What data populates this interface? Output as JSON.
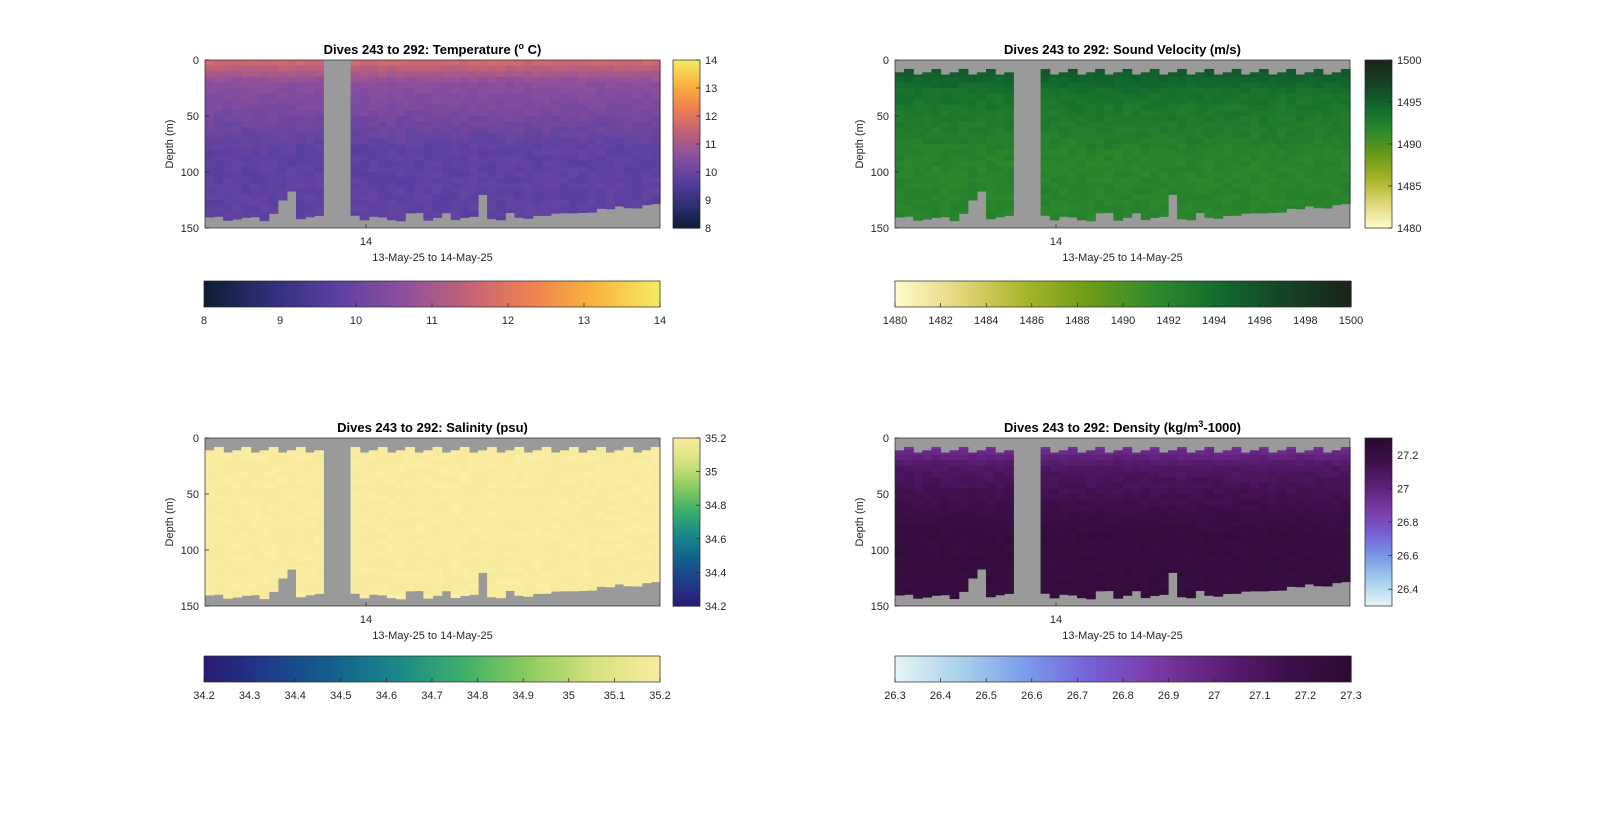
{
  "colors": {
    "background": "#ffffff",
    "nodata": "#9a9a9a",
    "axis": "#262626",
    "temperature_scale": [
      "#0d1d33",
      "#2f2f78",
      "#5a3fa0",
      "#8a4f9e",
      "#c0617a",
      "#ee8050",
      "#f9b43e",
      "#f4ec62"
    ],
    "sound_velocity_scale": [
      "#fefccc",
      "#e2d77a",
      "#a7b52a",
      "#6c9b17",
      "#2e8a2c",
      "#116b2e",
      "#154225",
      "#1a2419"
    ],
    "salinity_scale": [
      "#2a1a74",
      "#1e3c8a",
      "#12628d",
      "#1a8a88",
      "#3fb06a",
      "#8fcc5f",
      "#d6e27e",
      "#faeca0"
    ],
    "density_scale": [
      "#e8f4f6",
      "#a8d2ec",
      "#7a9cea",
      "#7660d6",
      "#7a3aa6",
      "#5e1f78",
      "#3e0f4a",
      "#2a0a30"
    ]
  },
  "chart_data": [
    {
      "type": "heatmap",
      "title_main": "Dives 243 to 292: Temperature (",
      "title_sup": "o",
      "title_end": " C)",
      "xlabel": "13-May-25 to 14-May-25",
      "ylabel": "Depth (m)",
      "x_ticks": [
        "14"
      ],
      "y_ticks": [
        "0",
        "50",
        "100",
        "150"
      ],
      "ylim": [
        0,
        150
      ],
      "colorbar_ticks": [
        "8",
        "9",
        "10",
        "11",
        "12",
        "13",
        "14"
      ],
      "colorbar_right_ticks": [
        "8",
        "9",
        "10",
        "11",
        "12",
        "13",
        "14"
      ],
      "clim": [
        8,
        14
      ],
      "profile": {
        "surface_value": 11.8,
        "upper_value": 10.6,
        "deep_value": 9.8,
        "surface_depth": 20
      },
      "surface_gap": "none"
    },
    {
      "type": "heatmap",
      "title_main": "Dives 243 to 292: Sound Velocity (m/s)",
      "title_sup": "",
      "title_end": "",
      "xlabel": "13-May-25 to 14-May-25",
      "ylabel": "Depth (m)",
      "x_ticks": [
        "14"
      ],
      "y_ticks": [
        "0",
        "50",
        "100",
        "150"
      ],
      "ylim": [
        0,
        150
      ],
      "colorbar_ticks": [
        "1480",
        "1482",
        "1484",
        "1486",
        "1488",
        "1490",
        "1492",
        "1494",
        "1496",
        "1498",
        "1500"
      ],
      "colorbar_right_ticks": [
        "1480",
        "1485",
        "1490",
        "1495",
        "1500"
      ],
      "clim": [
        1480,
        1500
      ],
      "profile": {
        "surface_value": 1496.5,
        "upper_value": 1493.5,
        "deep_value": 1492.0,
        "surface_depth": 30
      },
      "surface_gap": "teeth"
    },
    {
      "type": "heatmap",
      "title_main": "Dives 243 to 292: Salinity (psu)",
      "title_sup": "",
      "title_end": "",
      "xlabel": "13-May-25 to 14-May-25",
      "ylabel": "Depth (m)",
      "x_ticks": [
        "14"
      ],
      "y_ticks": [
        "0",
        "50",
        "100",
        "150"
      ],
      "ylim": [
        0,
        150
      ],
      "colorbar_ticks": [
        "34.2",
        "34.3",
        "34.4",
        "34.5",
        "34.6",
        "34.7",
        "34.8",
        "34.9",
        "35",
        "35.1",
        "35.2"
      ],
      "colorbar_right_ticks": [
        "34.2",
        "34.4",
        "34.6",
        "34.8",
        "35",
        "35.2"
      ],
      "clim": [
        34.2,
        35.2
      ],
      "profile": {
        "surface_value": 35.2,
        "upper_value": 35.2,
        "deep_value": 35.2,
        "surface_depth": 20
      },
      "surface_gap": "teeth"
    },
    {
      "type": "heatmap",
      "title_main": "Dives 243 to 292: Density (kg/m",
      "title_sup": "3",
      "title_end": "-1000)",
      "xlabel": "13-May-25 to 14-May-25",
      "ylabel": "Depth (m)",
      "x_ticks": [
        "14"
      ],
      "y_ticks": [
        "0",
        "50",
        "100",
        "150"
      ],
      "ylim": [
        0,
        150
      ],
      "colorbar_ticks": [
        "26.3",
        "26.4",
        "26.5",
        "26.6",
        "26.7",
        "26.8",
        "26.9",
        "27",
        "27.1",
        "27.2",
        "27.3"
      ],
      "colorbar_right_ticks": [
        "26.4",
        "26.6",
        "26.8",
        "27",
        "27.2"
      ],
      "clim": [
        26.3,
        27.3
      ],
      "profile": {
        "surface_value": 26.85,
        "upper_value": 27.08,
        "deep_value": 27.22,
        "surface_depth": 25
      },
      "surface_gap": "teeth"
    }
  ]
}
